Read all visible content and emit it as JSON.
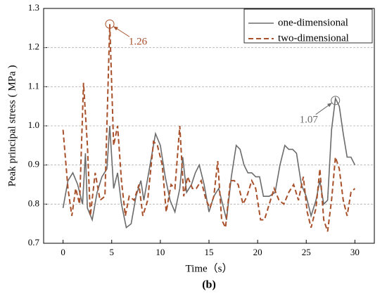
{
  "chart_data": {
    "type": "line",
    "subtitle": "(b)",
    "xlabel": "Time（s）",
    "ylabel": "Peak principal stress ( MPa )",
    "xlim": [
      -2,
      32
    ],
    "xticks": [
      0,
      5,
      10,
      15,
      20,
      25,
      30
    ],
    "ylim": [
      0.7,
      1.3
    ],
    "yticks": [
      0.7,
      0.8,
      0.9,
      {
        "value": 1,
        "label": "1.0"
      },
      1.1,
      1.2,
      1.3
    ],
    "grid": true,
    "legend": "upper right",
    "series": [
      {
        "name": "one-dimensional",
        "color": "#6b6b6b",
        "dash": false,
        "x": [
          0,
          0.5,
          1,
          1.5,
          2,
          2.3,
          2.5,
          3,
          3.5,
          4,
          4.5,
          4.8,
          5.2,
          5.6,
          6,
          6.5,
          7,
          7.5,
          8,
          8.3,
          8.8,
          9.5,
          10,
          10.5,
          11,
          11.5,
          12,
          12.3,
          12.7,
          13.2,
          13.6,
          14,
          14.5,
          15,
          15.5,
          16,
          16.4,
          16.8,
          17.3,
          17.8,
          18.2,
          18.6,
          19,
          19.4,
          19.8,
          20.2,
          20.6,
          21.2,
          21.8,
          22.3,
          22.8,
          23.2,
          23.6,
          24,
          24.5,
          25,
          25.5,
          26,
          26.4,
          26.8,
          27.2,
          27.6,
          28,
          28.4,
          28.8,
          29.2,
          29.6,
          30
        ],
        "values": [
          0.79,
          0.86,
          0.88,
          0.85,
          0.8,
          0.93,
          0.79,
          0.76,
          0.83,
          0.87,
          0.89,
          1.0,
          0.84,
          0.88,
          0.8,
          0.74,
          0.75,
          0.82,
          0.86,
          0.81,
          0.88,
          0.98,
          0.95,
          0.87,
          0.81,
          0.78,
          0.84,
          0.92,
          0.83,
          0.85,
          0.88,
          0.9,
          0.85,
          0.78,
          0.82,
          0.84,
          0.8,
          0.76,
          0.87,
          0.95,
          0.94,
          0.9,
          0.88,
          0.88,
          0.87,
          0.87,
          0.82,
          0.82,
          0.83,
          0.9,
          0.95,
          0.94,
          0.94,
          0.93,
          0.85,
          0.82,
          0.77,
          0.81,
          0.86,
          0.8,
          0.81,
          0.99,
          1.07,
          1.05,
          0.98,
          0.92,
          0.92,
          0.9
        ]
      },
      {
        "name": "two-dimensional",
        "color": "#a8502a",
        "dash": true,
        "x": [
          0,
          0.5,
          0.9,
          1.3,
          1.7,
          2.1,
          2.5,
          2.8,
          3.3,
          3.8,
          4.3,
          4.8,
          5.2,
          5.6,
          6,
          6.4,
          6.8,
          7.3,
          7.8,
          8.2,
          8.7,
          9.3,
          9.7,
          10.2,
          10.6,
          11.1,
          11.5,
          12,
          12.4,
          12.8,
          13.3,
          13.7,
          14.2,
          14.7,
          15.1,
          15.5,
          15.9,
          16.3,
          16.7,
          17.2,
          17.6,
          18,
          18.5,
          18.9,
          19.4,
          19.8,
          20.3,
          20.7,
          21.2,
          21.7,
          22.2,
          22.7,
          23.2,
          23.7,
          24.2,
          24.7,
          25.1,
          25.5,
          26,
          26.4,
          26.8,
          27.2,
          27.6,
          28,
          28.4,
          28.8,
          29.2,
          29.6,
          30
        ],
        "values": [
          0.99,
          0.84,
          0.77,
          0.84,
          0.8,
          1.11,
          0.95,
          0.77,
          0.88,
          0.81,
          0.82,
          1.26,
          0.95,
          1.0,
          0.86,
          0.77,
          0.82,
          0.81,
          0.85,
          0.77,
          0.81,
          0.96,
          0.95,
          0.9,
          0.78,
          0.85,
          0.84,
          1.0,
          0.82,
          0.87,
          0.84,
          0.84,
          0.86,
          0.81,
          0.79,
          0.82,
          0.91,
          0.76,
          0.74,
          0.86,
          0.86,
          0.85,
          0.8,
          0.82,
          0.86,
          0.84,
          0.76,
          0.76,
          0.8,
          0.84,
          0.81,
          0.8,
          0.83,
          0.85,
          0.81,
          0.87,
          0.78,
          0.74,
          0.79,
          0.89,
          0.76,
          0.73,
          0.81,
          0.92,
          0.89,
          0.81,
          0.77,
          0.83,
          0.84
        ]
      }
    ],
    "annotations": [
      {
        "text": "1.26",
        "x": 4.8,
        "y": 1.26,
        "color": "#a8502a"
      },
      {
        "text": "1.07",
        "x": 28,
        "y": 1.065,
        "color": "#6b6b6b"
      }
    ]
  }
}
